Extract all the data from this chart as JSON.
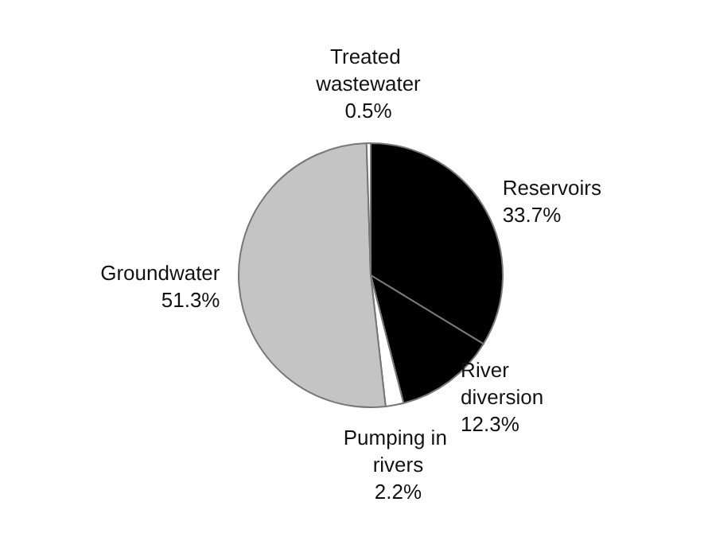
{
  "chart_data": {
    "type": "pie",
    "categories": [
      "Reservoirs",
      "River diversion",
      "Pumping in rivers",
      "Groundwater",
      "Treated wastewater"
    ],
    "values": [
      33.7,
      12.3,
      2.2,
      51.3,
      0.5
    ],
    "value_labels": [
      "33.7%",
      "12.3%",
      "2.2%",
      "51.3%",
      "0.5%"
    ],
    "colors": [
      "#000000",
      "#000000",
      "#ffffff",
      "#c4c4c4",
      "#ffffff"
    ],
    "legend": false
  }
}
